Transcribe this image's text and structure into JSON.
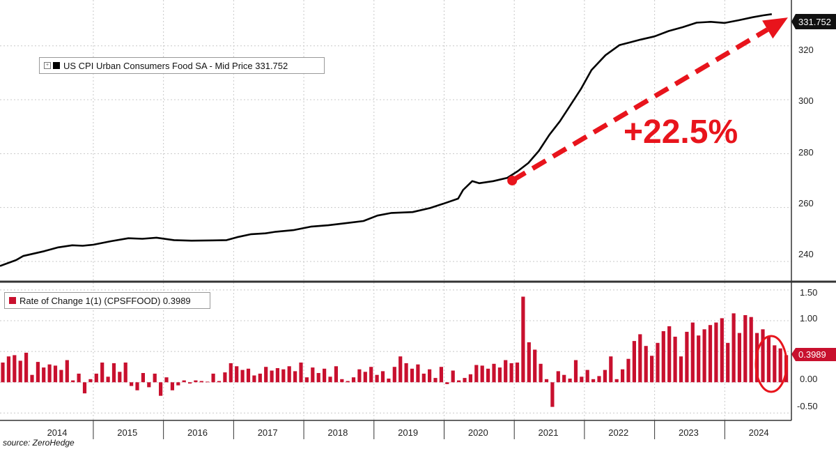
{
  "chart_data": [
    {
      "type": "line",
      "title": "",
      "legend": {
        "label": "US CPI Urban Consumers Food SA - Mid Price 331.752",
        "placement": "top-left",
        "color": "#000000"
      },
      "ylim": [
        233,
        337
      ],
      "yticks": [
        "240",
        "260",
        "280",
        "300",
        "320"
      ],
      "last_value_label": "331.752",
      "annotation": {
        "text": "+22.5%",
        "color": "#e8141c",
        "from": [
          2020.97,
          270
        ],
        "to": [
          2024.9,
          330.5
        ]
      },
      "x": [
        2013.67,
        2013.9,
        2014.0,
        2014.3,
        2014.5,
        2014.7,
        2014.85,
        2015.0,
        2015.25,
        2015.5,
        2015.7,
        2015.9,
        2016.15,
        2016.4,
        2016.7,
        2016.9,
        2017.05,
        2017.25,
        2017.45,
        2017.6,
        2017.85,
        2018.1,
        2018.35,
        2018.6,
        2018.85,
        2019.05,
        2019.25,
        2019.55,
        2019.8,
        2020.0,
        2020.2,
        2020.27,
        2020.4,
        2020.5,
        2020.7,
        2020.9,
        2021.05,
        2021.2,
        2021.35,
        2021.5,
        2021.65,
        2021.8,
        2021.95,
        2022.1,
        2022.3,
        2022.5,
        2022.65,
        2022.8,
        2023.0,
        2023.2,
        2023.4,
        2023.6,
        2023.8,
        2024.0,
        2024.2,
        2024.4,
        2024.55,
        2024.67
      ],
      "values": [
        238.3,
        240.5,
        242.0,
        243.8,
        245.2,
        246.0,
        245.8,
        246.2,
        247.5,
        248.6,
        248.4,
        248.8,
        247.9,
        247.7,
        247.8,
        247.9,
        249.0,
        250.1,
        250.4,
        251.0,
        251.6,
        252.9,
        253.4,
        254.2,
        255.0,
        257.0,
        258.0,
        258.3,
        259.8,
        261.5,
        263.3,
        266.5,
        269.8,
        269.0,
        269.8,
        271.0,
        273.5,
        276.5,
        281.0,
        287.0,
        292.0,
        298.0,
        304.0,
        311.0,
        316.5,
        320.3,
        321.3,
        322.3,
        323.5,
        325.5,
        326.9,
        328.6,
        328.9,
        328.5,
        329.5,
        330.6,
        331.3,
        331.752
      ]
    },
    {
      "type": "bar",
      "legend": {
        "label": "Rate of Change 1(1) (CPSFFOOD) 0.3989",
        "placement": "top-left",
        "color": "#c8102e"
      },
      "ylim": [
        -0.62,
        1.6
      ],
      "yticks": [
        "1.50",
        "1.00",
        "0.50",
        "0.00",
        "-0.50"
      ],
      "last_value_label": "0.3989",
      "x_start": 2013.67,
      "x_step": 0.0833333,
      "values": [
        0.32,
        0.42,
        0.44,
        0.35,
        0.48,
        0.12,
        0.33,
        0.24,
        0.29,
        0.27,
        0.2,
        0.36,
        0.03,
        0.14,
        -0.18,
        0.05,
        0.14,
        0.32,
        0.09,
        0.31,
        0.17,
        0.32,
        -0.06,
        -0.13,
        0.15,
        -0.08,
        0.14,
        -0.22,
        0.08,
        -0.13,
        -0.05,
        0.03,
        -0.02,
        0.03,
        0.02,
        0.01,
        0.14,
        0.02,
        0.16,
        0.31,
        0.26,
        0.2,
        0.22,
        0.11,
        0.14,
        0.25,
        0.19,
        0.23,
        0.21,
        0.26,
        0.18,
        0.32,
        0.08,
        0.24,
        0.15,
        0.22,
        0.09,
        0.26,
        0.05,
        0.02,
        0.08,
        0.21,
        0.17,
        0.25,
        0.12,
        0.18,
        0.06,
        0.25,
        0.42,
        0.31,
        0.22,
        0.29,
        0.14,
        0.21,
        0.07,
        0.25,
        -0.03,
        0.19,
        0.03,
        0.07,
        0.13,
        0.28,
        0.27,
        0.22,
        0.3,
        0.24,
        0.36,
        0.31,
        0.32,
        1.39,
        0.65,
        0.53,
        0.3,
        0.05,
        -0.4,
        0.18,
        0.12,
        0.06,
        0.36,
        0.09,
        0.2,
        0.05,
        0.1,
        0.2,
        0.42,
        0.05,
        0.21,
        0.38,
        0.67,
        0.78,
        0.59,
        0.43,
        0.64,
        0.83,
        0.91,
        0.74,
        0.42,
        0.82,
        0.97,
        0.76,
        0.86,
        0.93,
        0.97,
        1.04,
        0.64,
        1.12,
        0.8,
        1.09,
        1.06,
        0.8,
        0.86,
        0.74,
        0.6,
        0.55,
        0.44,
        0.34,
        0.48,
        0.52,
        0.35,
        0.27,
        0.13,
        0.05,
        0.21,
        0.16,
        0.24,
        0.18,
        0.26,
        0.25,
        0.13,
        0.3,
        0.24,
        0.16,
        0.06,
        0.24,
        0.13,
        0.11,
        0.39,
        0.03,
        0.02,
        0.04,
        0.17,
        0.02,
        0.07,
        0.24,
        0.17,
        0.15,
        0.3989
      ],
      "annotation": {
        "shape": "circle",
        "color": "#e8141c"
      }
    }
  ],
  "x_axis": {
    "ticks": [
      "2014",
      "2015",
      "2016",
      "2017",
      "2018",
      "2019",
      "2020",
      "2021",
      "2022",
      "2023",
      "2024"
    ],
    "range": [
      2013.67,
      2024.95
    ]
  },
  "source": "source: ZeroHedge",
  "colors": {
    "line": "#000000",
    "bars": "#c8102e",
    "annotation": "#e8141c",
    "grid": "#c8c8c8"
  }
}
